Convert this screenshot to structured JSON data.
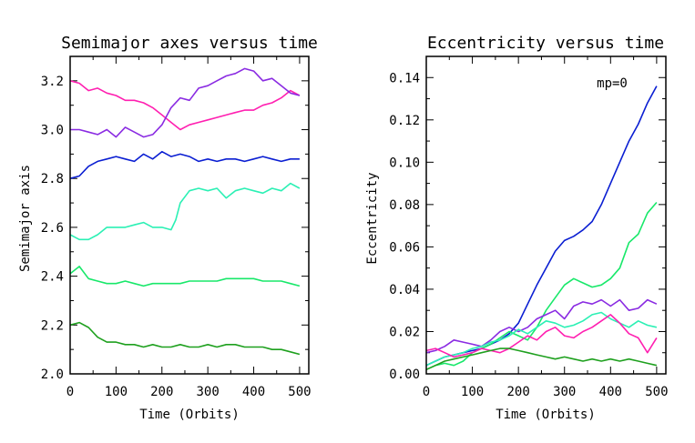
{
  "chart_data": [
    {
      "type": "line",
      "title": "Semimajor axes versus time",
      "xlabel": "Time (Orbits)",
      "ylabel": "Semimajor axis",
      "xlim": [
        0,
        520
      ],
      "ylim": [
        2.0,
        3.3
      ],
      "xticks": [
        "0",
        "100",
        "200",
        "300",
        "400",
        "500"
      ],
      "yticks": [
        "2.0",
        "2.2",
        "2.4",
        "2.6",
        "2.8",
        "3.0",
        "3.2"
      ],
      "series": [
        {
          "name": "magenta",
          "color": "#ff1fb0",
          "x": [
            0,
            20,
            40,
            60,
            80,
            100,
            120,
            140,
            160,
            180,
            200,
            220,
            240,
            260,
            280,
            300,
            320,
            340,
            360,
            380,
            400,
            420,
            440,
            460,
            480,
            500
          ],
          "y": [
            3.2,
            3.19,
            3.16,
            3.17,
            3.15,
            3.14,
            3.12,
            3.12,
            3.11,
            3.09,
            3.06,
            3.03,
            3.0,
            3.02,
            3.03,
            3.04,
            3.05,
            3.06,
            3.07,
            3.08,
            3.08,
            3.1,
            3.11,
            3.13,
            3.16,
            3.14
          ]
        },
        {
          "name": "purple",
          "color": "#8a2be2",
          "x": [
            0,
            20,
            40,
            60,
            80,
            100,
            120,
            140,
            160,
            180,
            200,
            220,
            240,
            260,
            280,
            300,
            320,
            340,
            360,
            380,
            400,
            420,
            440,
            460,
            480,
            500
          ],
          "y": [
            3.0,
            3.0,
            2.99,
            2.98,
            3.0,
            2.97,
            3.01,
            2.99,
            2.97,
            2.98,
            3.02,
            3.09,
            3.13,
            3.12,
            3.17,
            3.18,
            3.2,
            3.22,
            3.23,
            3.25,
            3.24,
            3.2,
            3.21,
            3.18,
            3.15,
            3.14
          ]
        },
        {
          "name": "blue",
          "color": "#0a1ed2",
          "x": [
            0,
            20,
            40,
            60,
            80,
            100,
            120,
            140,
            160,
            180,
            200,
            220,
            240,
            260,
            280,
            300,
            320,
            340,
            360,
            380,
            400,
            420,
            440,
            460,
            480,
            500
          ],
          "y": [
            2.8,
            2.81,
            2.85,
            2.87,
            2.88,
            2.89,
            2.88,
            2.87,
            2.9,
            2.88,
            2.91,
            2.89,
            2.9,
            2.89,
            2.87,
            2.88,
            2.87,
            2.88,
            2.88,
            2.87,
            2.88,
            2.89,
            2.88,
            2.87,
            2.88,
            2.88
          ]
        },
        {
          "name": "aquamarine",
          "color": "#2bf0b4",
          "x": [
            0,
            20,
            40,
            60,
            80,
            100,
            120,
            140,
            160,
            180,
            200,
            220,
            230,
            240,
            260,
            280,
            300,
            320,
            340,
            360,
            380,
            400,
            420,
            440,
            460,
            480,
            500
          ],
          "y": [
            2.57,
            2.55,
            2.55,
            2.57,
            2.6,
            2.6,
            2.6,
            2.61,
            2.62,
            2.6,
            2.6,
            2.59,
            2.63,
            2.7,
            2.75,
            2.76,
            2.75,
            2.76,
            2.72,
            2.75,
            2.76,
            2.75,
            2.74,
            2.76,
            2.75,
            2.78,
            2.76
          ]
        },
        {
          "name": "spring green",
          "color": "#18e86a",
          "x": [
            0,
            20,
            40,
            60,
            80,
            100,
            120,
            140,
            160,
            180,
            200,
            220,
            240,
            260,
            280,
            300,
            320,
            340,
            360,
            380,
            400,
            420,
            440,
            460,
            480,
            500
          ],
          "y": [
            2.41,
            2.44,
            2.39,
            2.38,
            2.37,
            2.37,
            2.38,
            2.37,
            2.36,
            2.37,
            2.37,
            2.37,
            2.37,
            2.38,
            2.38,
            2.38,
            2.38,
            2.39,
            2.39,
            2.39,
            2.39,
            2.38,
            2.38,
            2.38,
            2.37,
            2.36
          ]
        },
        {
          "name": "green",
          "color": "#1ea01e",
          "x": [
            0,
            20,
            40,
            60,
            80,
            100,
            120,
            140,
            160,
            180,
            200,
            220,
            240,
            260,
            280,
            300,
            320,
            340,
            360,
            380,
            400,
            420,
            440,
            460,
            480,
            500
          ],
          "y": [
            2.2,
            2.21,
            2.19,
            2.15,
            2.13,
            2.13,
            2.12,
            2.12,
            2.11,
            2.12,
            2.11,
            2.11,
            2.12,
            2.11,
            2.11,
            2.12,
            2.11,
            2.12,
            2.12,
            2.11,
            2.11,
            2.11,
            2.1,
            2.1,
            2.09,
            2.08
          ]
        }
      ]
    },
    {
      "type": "line",
      "title": "Eccentricity versus time",
      "xlabel": "Time (Orbits)",
      "ylabel": "Eccentricity",
      "xlim": [
        0,
        520
      ],
      "ylim": [
        0,
        0.15
      ],
      "xticks": [
        "0",
        "100",
        "200",
        "300",
        "400",
        "500"
      ],
      "yticks": [
        "0.00",
        "0.02",
        "0.04",
        "0.06",
        "0.08",
        "0.10",
        "0.12",
        "0.14"
      ],
      "annotation": "mp=0",
      "series": [
        {
          "name": "blue",
          "color": "#0a1ed2",
          "x": [
            0,
            20,
            40,
            60,
            80,
            100,
            120,
            140,
            160,
            180,
            200,
            220,
            240,
            260,
            280,
            300,
            320,
            340,
            360,
            380,
            400,
            420,
            440,
            460,
            480,
            500
          ],
          "y": [
            0.004,
            0.006,
            0.008,
            0.009,
            0.01,
            0.011,
            0.012,
            0.014,
            0.016,
            0.019,
            0.024,
            0.033,
            0.042,
            0.05,
            0.058,
            0.063,
            0.065,
            0.068,
            0.072,
            0.08,
            0.09,
            0.1,
            0.11,
            0.118,
            0.128,
            0.136
          ]
        },
        {
          "name": "spring green",
          "color": "#18e86a",
          "x": [
            0,
            20,
            40,
            60,
            80,
            100,
            120,
            140,
            160,
            180,
            200,
            220,
            240,
            260,
            280,
            300,
            320,
            340,
            360,
            380,
            400,
            420,
            440,
            460,
            480,
            500
          ],
          "y": [
            0.002,
            0.004,
            0.005,
            0.004,
            0.006,
            0.01,
            0.012,
            0.014,
            0.017,
            0.02,
            0.018,
            0.016,
            0.022,
            0.03,
            0.036,
            0.042,
            0.045,
            0.043,
            0.041,
            0.042,
            0.045,
            0.05,
            0.062,
            0.066,
            0.076,
            0.081
          ]
        },
        {
          "name": "purple",
          "color": "#8a2be2",
          "x": [
            0,
            20,
            40,
            60,
            80,
            100,
            120,
            140,
            160,
            180,
            200,
            220,
            240,
            260,
            280,
            300,
            320,
            340,
            360,
            380,
            400,
            420,
            440,
            460,
            480,
            500
          ],
          "y": [
            0.01,
            0.011,
            0.013,
            0.016,
            0.015,
            0.014,
            0.013,
            0.016,
            0.02,
            0.022,
            0.02,
            0.022,
            0.026,
            0.028,
            0.03,
            0.026,
            0.032,
            0.034,
            0.033,
            0.035,
            0.032,
            0.035,
            0.03,
            0.031,
            0.035,
            0.033
          ]
        },
        {
          "name": "aquamarine",
          "color": "#2bf0b4",
          "x": [
            0,
            20,
            40,
            60,
            80,
            100,
            120,
            140,
            160,
            180,
            200,
            220,
            240,
            260,
            280,
            300,
            320,
            340,
            360,
            380,
            400,
            420,
            440,
            460,
            480,
            500
          ],
          "y": [
            0.004,
            0.006,
            0.008,
            0.009,
            0.01,
            0.012,
            0.013,
            0.015,
            0.016,
            0.018,
            0.021,
            0.019,
            0.022,
            0.025,
            0.024,
            0.022,
            0.023,
            0.025,
            0.028,
            0.029,
            0.026,
            0.024,
            0.022,
            0.025,
            0.023,
            0.022
          ]
        },
        {
          "name": "magenta",
          "color": "#ff1fb0",
          "x": [
            0,
            20,
            40,
            60,
            80,
            100,
            120,
            140,
            160,
            180,
            200,
            220,
            240,
            260,
            280,
            300,
            320,
            340,
            360,
            380,
            400,
            420,
            440,
            460,
            480,
            500
          ],
          "y": [
            0.011,
            0.012,
            0.01,
            0.008,
            0.009,
            0.01,
            0.012,
            0.011,
            0.01,
            0.012,
            0.015,
            0.018,
            0.016,
            0.02,
            0.022,
            0.018,
            0.017,
            0.02,
            0.022,
            0.025,
            0.028,
            0.024,
            0.019,
            0.017,
            0.01,
            0.017
          ]
        },
        {
          "name": "green",
          "color": "#1ea01e",
          "x": [
            0,
            20,
            40,
            60,
            80,
            100,
            120,
            140,
            160,
            180,
            200,
            220,
            240,
            260,
            280,
            300,
            320,
            340,
            360,
            380,
            400,
            420,
            440,
            460,
            480,
            500
          ],
          "y": [
            0.002,
            0.004,
            0.006,
            0.007,
            0.008,
            0.009,
            0.01,
            0.011,
            0.012,
            0.012,
            0.011,
            0.01,
            0.009,
            0.008,
            0.007,
            0.008,
            0.007,
            0.006,
            0.007,
            0.006,
            0.007,
            0.006,
            0.007,
            0.006,
            0.005,
            0.004
          ]
        }
      ]
    }
  ]
}
